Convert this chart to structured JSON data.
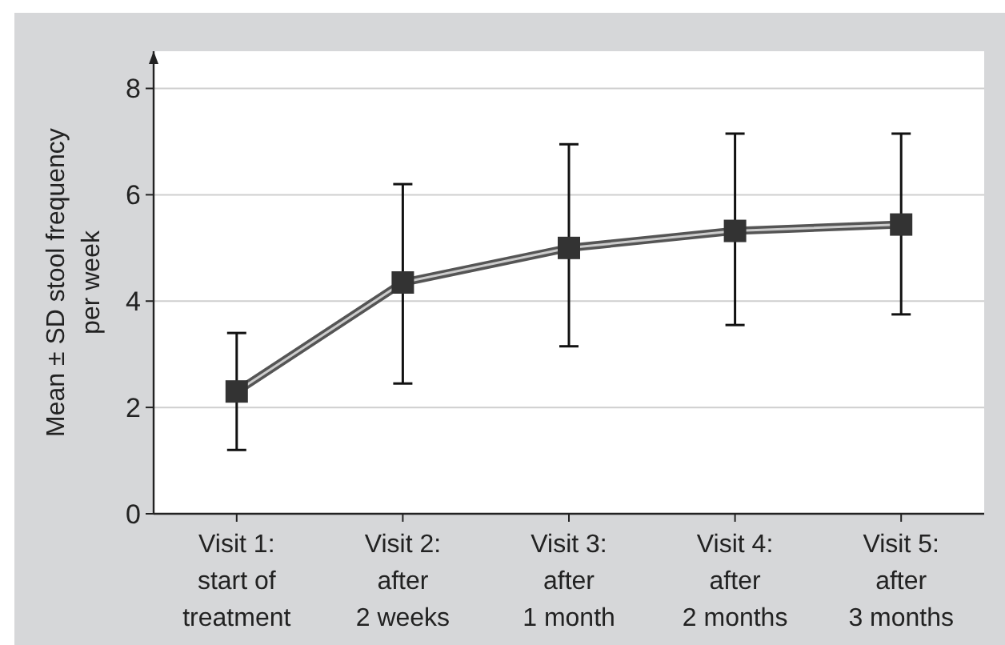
{
  "chart_data": {
    "type": "line",
    "ylabel": "Mean ± SD stool frequency\nper week",
    "categories": [
      "Visit 1:\nstart of\ntreatment",
      "Visit 2:\nafter\n2 weeks",
      "Visit 3:\nafter\n1 month",
      "Visit 4:\nafter\n2 months",
      "Visit 5:\nafter\n3 months"
    ],
    "series": [
      {
        "color": "#555555",
        "values": [
          2.3,
          4.35,
          5.0,
          5.32,
          5.44
        ],
        "errors": [
          [
            1.2,
            3.4
          ],
          [
            2.45,
            6.2
          ],
          [
            3.15,
            6.95
          ],
          [
            3.55,
            7.15
          ],
          [
            3.75,
            7.15
          ]
        ]
      }
    ],
    "ylim": [
      0,
      8.7
    ],
    "yticks": [
      0,
      2,
      4,
      6,
      8
    ],
    "grid": "y",
    "marker": "square",
    "line_style": "solid"
  }
}
